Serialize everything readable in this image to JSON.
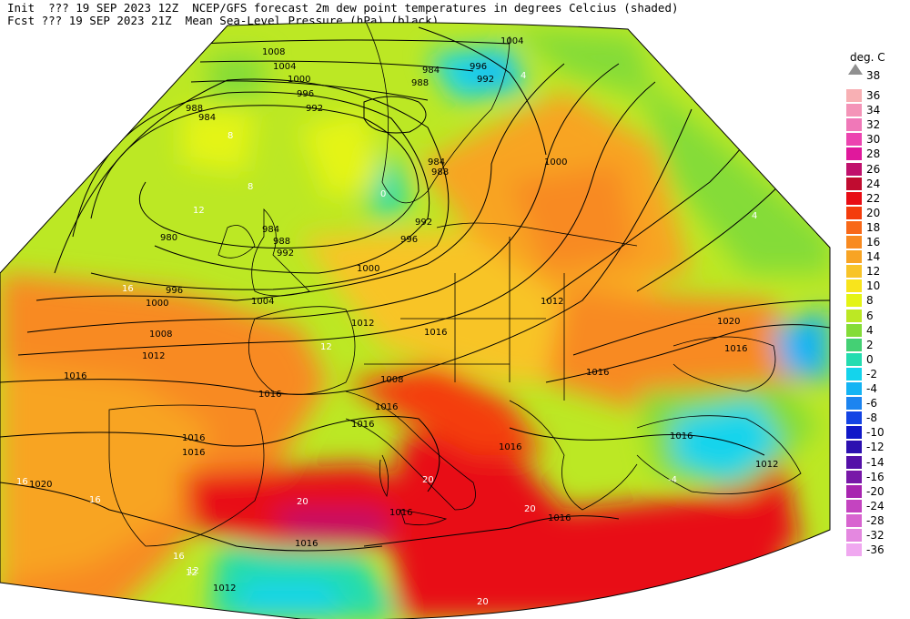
{
  "header": {
    "line1": "Init  ??? 19 SEP 2023 12Z  NCEP/GFS forecast 2m dew point temperatures in degrees Celcius (shaded)",
    "line2": "Fcst ??? 19 SEP 2023 21Z  Mean Sea-Level Pressure (hPa) (black)."
  },
  "legend": {
    "title": "deg. C",
    "top_label": "38",
    "entries": [
      {
        "label": "36",
        "color": "#f8b0b4"
      },
      {
        "label": "34",
        "color": "#f494b8"
      },
      {
        "label": "32",
        "color": "#f078b8"
      },
      {
        "label": "30",
        "color": "#ec44b0"
      },
      {
        "label": "28",
        "color": "#e0189c"
      },
      {
        "label": "26",
        "color": "#c0106c"
      },
      {
        "label": "24",
        "color": "#c00c30"
      },
      {
        "label": "22",
        "color": "#e80c14"
      },
      {
        "label": "20",
        "color": "#f43c0c"
      },
      {
        "label": "18",
        "color": "#f86818"
      },
      {
        "label": "16",
        "color": "#f88a20"
      },
      {
        "label": "14",
        "color": "#f8a424"
      },
      {
        "label": "12",
        "color": "#f8c428"
      },
      {
        "label": "10",
        "color": "#f8e41c"
      },
      {
        "label": "8",
        "color": "#e4f414"
      },
      {
        "label": "6",
        "color": "#bce824"
      },
      {
        "label": "4",
        "color": "#84dc38"
      },
      {
        "label": "2",
        "color": "#44d074"
      },
      {
        "label": "0",
        "color": "#24dcb0"
      },
      {
        "label": "-2",
        "color": "#14d4ec"
      },
      {
        "label": "-4",
        "color": "#14b4f4"
      },
      {
        "label": "-6",
        "color": "#1c84f0"
      },
      {
        "label": "-8",
        "color": "#1444e4"
      },
      {
        "label": "-10",
        "color": "#1018c8"
      },
      {
        "label": "-12",
        "color": "#2c10b0"
      },
      {
        "label": "-14",
        "color": "#5410a8"
      },
      {
        "label": "-16",
        "color": "#7818a8"
      },
      {
        "label": "-20",
        "color": "#a824b0"
      },
      {
        "label": "-24",
        "color": "#c444c0"
      },
      {
        "label": "-28",
        "color": "#d864d0"
      },
      {
        "label": "-32",
        "color": "#e488e0"
      },
      {
        "label": "-36",
        "color": "#f0a8f0"
      }
    ]
  },
  "isobar_labels": [
    {
      "text": "1008"
    },
    {
      "text": "1004"
    },
    {
      "text": "1000"
    },
    {
      "text": "996"
    },
    {
      "text": "992"
    },
    {
      "text": "988"
    },
    {
      "text": "984"
    },
    {
      "text": "980"
    },
    {
      "text": "984"
    },
    {
      "text": "988"
    },
    {
      "text": "992"
    },
    {
      "text": "996"
    },
    {
      "text": "1000"
    },
    {
      "text": "1004"
    },
    {
      "text": "1008"
    },
    {
      "text": "1012"
    },
    {
      "text": "1016"
    },
    {
      "text": "1016"
    },
    {
      "text": "1016"
    },
    {
      "text": "1016"
    },
    {
      "text": "1020"
    },
    {
      "text": "1012"
    },
    {
      "text": "1016"
    },
    {
      "text": "1016"
    },
    {
      "text": "1012"
    },
    {
      "text": "1016"
    },
    {
      "text": "1020"
    },
    {
      "text": "1016"
    },
    {
      "text": "1016"
    },
    {
      "text": "1016"
    },
    {
      "text": "1012"
    },
    {
      "text": "1016"
    },
    {
      "text": "1000"
    },
    {
      "text": "992"
    },
    {
      "text": "996"
    },
    {
      "text": "984"
    },
    {
      "text": "988"
    },
    {
      "text": "984"
    },
    {
      "text": "988"
    },
    {
      "text": "992"
    },
    {
      "text": "996"
    },
    {
      "text": "1000"
    },
    {
      "text": "1004"
    },
    {
      "text": "1008"
    },
    {
      "text": "1016"
    },
    {
      "text": "1012"
    },
    {
      "text": "1016"
    },
    {
      "text": "1016"
    }
  ],
  "dewpoint_labels": [
    {
      "text": "8"
    },
    {
      "text": "8"
    },
    {
      "text": "12"
    },
    {
      "text": "16"
    },
    {
      "text": "12"
    },
    {
      "text": "16"
    },
    {
      "text": "16"
    },
    {
      "text": "12"
    },
    {
      "text": "20"
    },
    {
      "text": "20"
    },
    {
      "text": "20"
    },
    {
      "text": "-4"
    },
    {
      "text": "4"
    },
    {
      "text": "0"
    },
    {
      "text": "4"
    },
    {
      "text": "16"
    },
    {
      "text": "12"
    },
    {
      "text": "20"
    }
  ]
}
